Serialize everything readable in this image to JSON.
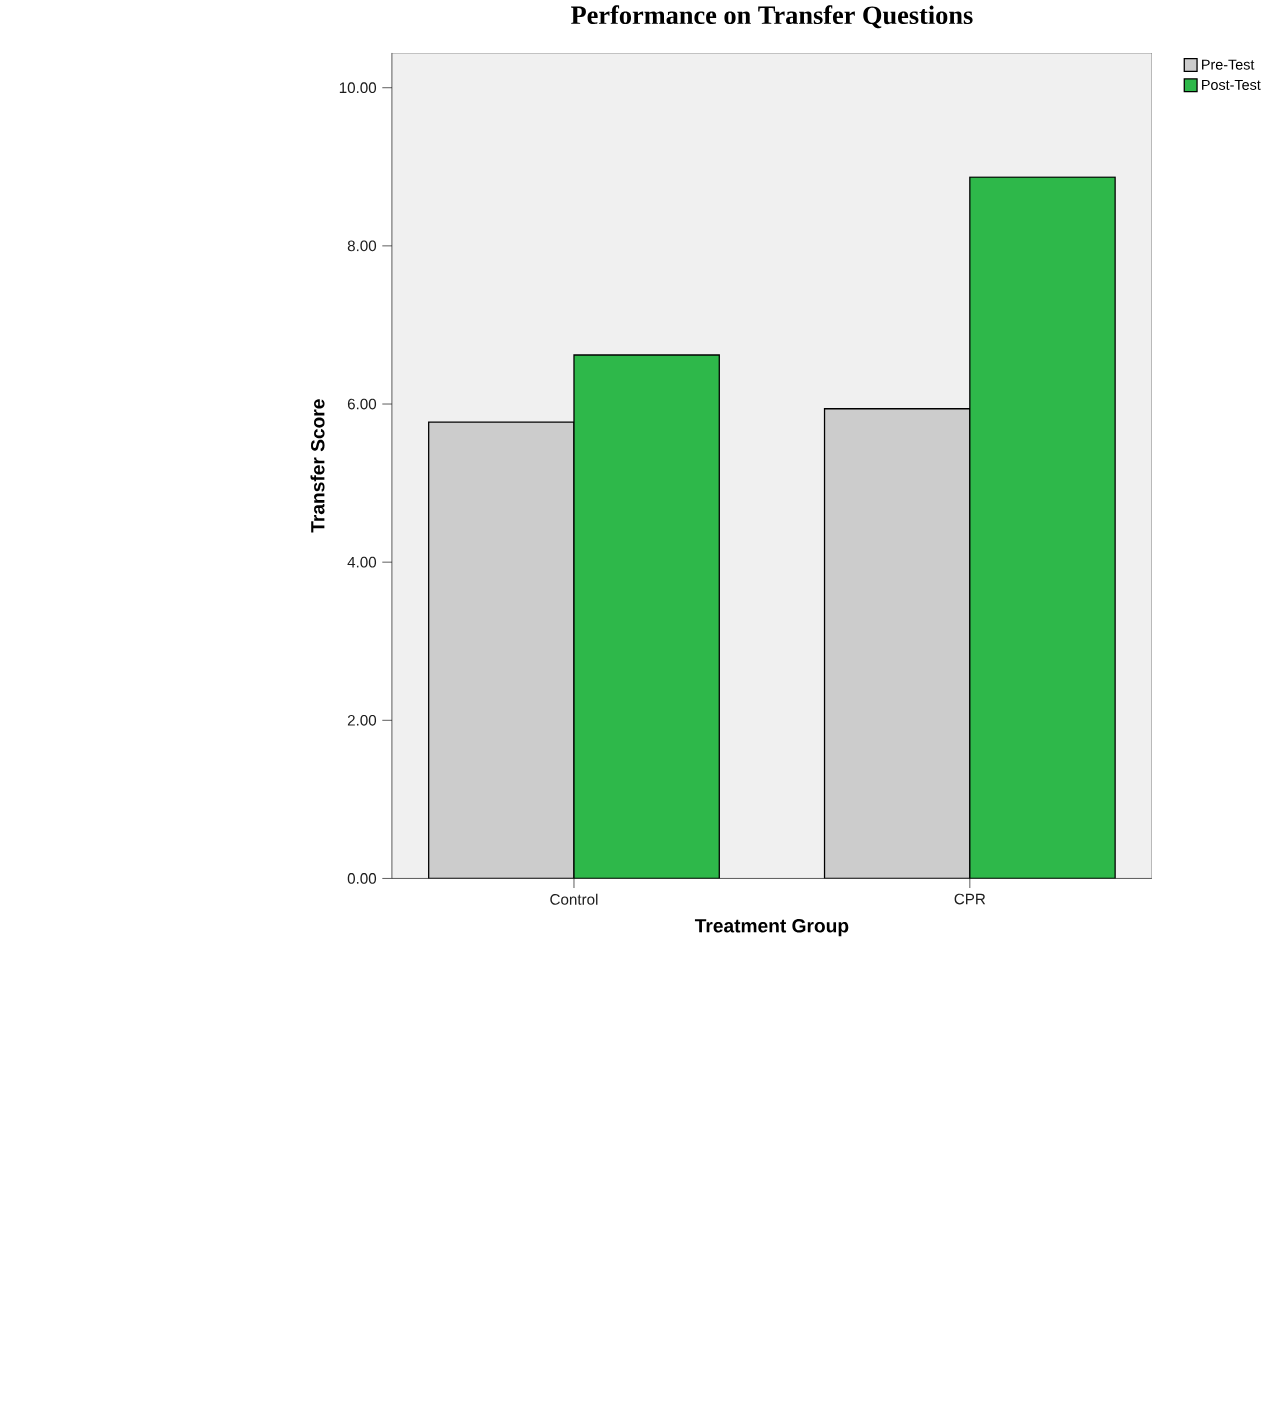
{
  "chart_data": {
    "type": "bar",
    "title": "Performance on Transfer Questions",
    "xlabel": "Treatment Group",
    "ylabel": "Transfer Score",
    "categories": [
      "Control",
      "CPR"
    ],
    "series": [
      {
        "name": "Pre-Test",
        "color": "#cccccc",
        "values": [
          5.77,
          5.94
        ]
      },
      {
        "name": "Post-Test",
        "color": "#2eb84a",
        "values": [
          6.62,
          8.87
        ]
      }
    ],
    "ylim": [
      0,
      10.44
    ],
    "yticks": [
      {
        "value": 0,
        "label": "0.00"
      },
      {
        "value": 2,
        "label": "2.00"
      },
      {
        "value": 4,
        "label": "4.00"
      },
      {
        "value": 6,
        "label": "6.00"
      },
      {
        "value": 8,
        "label": "8.00"
      },
      {
        "value": 10,
        "label": "10.00"
      }
    ],
    "legend": "top right",
    "grid": false
  }
}
